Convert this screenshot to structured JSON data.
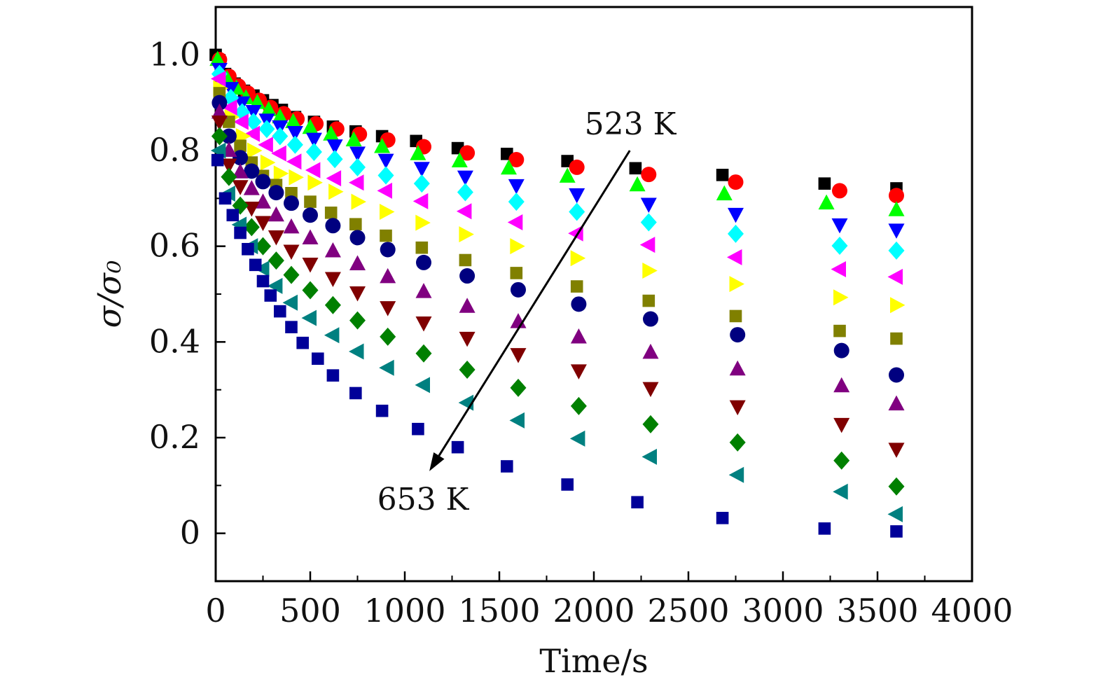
{
  "chart_data": {
    "type": "scatter",
    "title": "",
    "xlabel": "Time/s",
    "ylabel": "σ/σ₀",
    "xlim": [
      0,
      4000
    ],
    "ylim": [
      -0.1,
      1.1
    ],
    "x_ticks": [
      "0",
      "500",
      "1000",
      "1500",
      "2000",
      "2500",
      "3000",
      "3500",
      "4000"
    ],
    "y_ticks": [
      "0",
      "0.2",
      "0.4",
      "0.6",
      "0.8",
      "1.0"
    ],
    "grid": false,
    "legend": "none",
    "annotations": [
      {
        "text": "523 K"
      },
      {
        "text": "653 K"
      }
    ],
    "arrow": {
      "from": [
        2190,
        0.8
      ],
      "to": [
        1130,
        0.13
      ]
    },
    "series": [
      {
        "marker": "square",
        "color": "#000000",
        "points": [
          [
            0,
            1.0
          ],
          [
            50,
            0.96
          ],
          [
            100,
            0.94
          ],
          [
            150,
            0.925
          ],
          [
            200,
            0.915
          ],
          [
            250,
            0.905
          ],
          [
            300,
            0.895
          ],
          [
            350,
            0.885
          ],
          [
            420,
            0.87
          ],
          [
            520,
            0.86
          ],
          [
            620,
            0.85
          ],
          [
            740,
            0.84
          ],
          [
            880,
            0.83
          ],
          [
            1060,
            0.82
          ],
          [
            1280,
            0.805
          ],
          [
            1540,
            0.793
          ],
          [
            1860,
            0.778
          ],
          [
            2220,
            0.763
          ],
          [
            2680,
            0.749
          ],
          [
            3220,
            0.731
          ],
          [
            3600,
            0.721
          ]
        ]
      },
      {
        "marker": "circle",
        "color": "#ff0000",
        "points": [
          [
            20,
            0.99
          ],
          [
            70,
            0.955
          ],
          [
            120,
            0.935
          ],
          [
            170,
            0.92
          ],
          [
            230,
            0.905
          ],
          [
            290,
            0.89
          ],
          [
            360,
            0.877
          ],
          [
            430,
            0.866
          ],
          [
            530,
            0.856
          ],
          [
            640,
            0.845
          ],
          [
            760,
            0.834
          ],
          [
            910,
            0.822
          ],
          [
            1100,
            0.808
          ],
          [
            1330,
            0.795
          ],
          [
            1590,
            0.781
          ],
          [
            1910,
            0.765
          ],
          [
            2290,
            0.75
          ],
          [
            2750,
            0.734
          ],
          [
            3300,
            0.716
          ],
          [
            3600,
            0.706
          ]
        ]
      },
      {
        "marker": "triangle-up",
        "color": "#00ff00",
        "points": [
          [
            10,
            0.99
          ],
          [
            60,
            0.95
          ],
          [
            110,
            0.93
          ],
          [
            160,
            0.91
          ],
          [
            220,
            0.9
          ],
          [
            280,
            0.885
          ],
          [
            340,
            0.87
          ],
          [
            410,
            0.86
          ],
          [
            500,
            0.848
          ],
          [
            610,
            0.834
          ],
          [
            730,
            0.822
          ],
          [
            880,
            0.808
          ],
          [
            1070,
            0.793
          ],
          [
            1290,
            0.778
          ],
          [
            1550,
            0.763
          ],
          [
            1860,
            0.746
          ],
          [
            2230,
            0.728
          ],
          [
            2690,
            0.709
          ],
          [
            3230,
            0.69
          ],
          [
            3600,
            0.676
          ]
        ]
      },
      {
        "marker": "triangle-down",
        "color": "#0000ff",
        "points": [
          [
            20,
            0.97
          ],
          [
            80,
            0.93
          ],
          [
            140,
            0.9
          ],
          [
            200,
            0.882
          ],
          [
            270,
            0.864
          ],
          [
            340,
            0.85
          ],
          [
            420,
            0.838
          ],
          [
            520,
            0.824
          ],
          [
            630,
            0.81
          ],
          [
            750,
            0.795
          ],
          [
            900,
            0.78
          ],
          [
            1090,
            0.763
          ],
          [
            1320,
            0.745
          ],
          [
            1590,
            0.727
          ],
          [
            1910,
            0.708
          ],
          [
            2290,
            0.688
          ],
          [
            2750,
            0.667
          ],
          [
            3300,
            0.645
          ],
          [
            3600,
            0.634
          ]
        ]
      },
      {
        "marker": "diamond",
        "color": "#00ffff",
        "points": [
          [
            20,
            0.96
          ],
          [
            80,
            0.91
          ],
          [
            140,
            0.88
          ],
          [
            200,
            0.86
          ],
          [
            270,
            0.845
          ],
          [
            340,
            0.83
          ],
          [
            420,
            0.812
          ],
          [
            520,
            0.797
          ],
          [
            630,
            0.782
          ],
          [
            750,
            0.765
          ],
          [
            900,
            0.748
          ],
          [
            1090,
            0.731
          ],
          [
            1320,
            0.713
          ],
          [
            1590,
            0.693
          ],
          [
            1910,
            0.672
          ],
          [
            2290,
            0.65
          ],
          [
            2750,
            0.626
          ],
          [
            3300,
            0.601
          ],
          [
            3600,
            0.591
          ]
        ]
      },
      {
        "marker": "triangle-left",
        "color": "#ff00ff",
        "points": [
          [
            20,
            0.95
          ],
          [
            80,
            0.89
          ],
          [
            140,
            0.86
          ],
          [
            200,
            0.835
          ],
          [
            270,
            0.812
          ],
          [
            340,
            0.794
          ],
          [
            420,
            0.777
          ],
          [
            520,
            0.759
          ],
          [
            630,
            0.742
          ],
          [
            750,
            0.733
          ],
          [
            900,
            0.716
          ],
          [
            1090,
            0.694
          ],
          [
            1320,
            0.673
          ],
          [
            1590,
            0.65
          ],
          [
            1910,
            0.627
          ],
          [
            2290,
            0.603
          ],
          [
            2750,
            0.577
          ],
          [
            3300,
            0.552
          ],
          [
            3600,
            0.536
          ]
        ]
      },
      {
        "marker": "triangle-right",
        "color": "#ffff00",
        "points": [
          [
            20,
            0.93
          ],
          [
            80,
            0.87
          ],
          [
            140,
            0.83
          ],
          [
            200,
            0.8
          ],
          [
            270,
            0.775
          ],
          [
            340,
            0.752
          ],
          [
            420,
            0.744
          ],
          [
            520,
            0.733
          ],
          [
            630,
            0.714
          ],
          [
            750,
            0.693
          ],
          [
            900,
            0.672
          ],
          [
            1090,
            0.649
          ],
          [
            1320,
            0.625
          ],
          [
            1590,
            0.6
          ],
          [
            1910,
            0.575
          ],
          [
            2290,
            0.549
          ],
          [
            2750,
            0.521
          ],
          [
            3300,
            0.493
          ],
          [
            3600,
            0.477
          ]
        ]
      },
      {
        "marker": "square",
        "color": "#808000",
        "points": [
          [
            20,
            0.92
          ],
          [
            70,
            0.86
          ],
          [
            130,
            0.81
          ],
          [
            190,
            0.775
          ],
          [
            250,
            0.747
          ],
          [
            320,
            0.728
          ],
          [
            400,
            0.711
          ],
          [
            500,
            0.693
          ],
          [
            610,
            0.67
          ],
          [
            740,
            0.646
          ],
          [
            900,
            0.622
          ],
          [
            1090,
            0.597
          ],
          [
            1320,
            0.571
          ],
          [
            1590,
            0.544
          ],
          [
            1910,
            0.516
          ],
          [
            2290,
            0.486
          ],
          [
            2750,
            0.454
          ],
          [
            3300,
            0.423
          ],
          [
            3600,
            0.407
          ]
        ]
      },
      {
        "marker": "circle",
        "color": "#000080",
        "points": [
          [
            20,
            0.9
          ],
          [
            70,
            0.83
          ],
          [
            130,
            0.785
          ],
          [
            190,
            0.757
          ],
          [
            250,
            0.735
          ],
          [
            320,
            0.712
          ],
          [
            400,
            0.69
          ],
          [
            500,
            0.665
          ],
          [
            620,
            0.643
          ],
          [
            750,
            0.618
          ],
          [
            910,
            0.593
          ],
          [
            1100,
            0.566
          ],
          [
            1330,
            0.538
          ],
          [
            1600,
            0.509
          ],
          [
            1920,
            0.479
          ],
          [
            2300,
            0.448
          ],
          [
            2760,
            0.415
          ],
          [
            3310,
            0.382
          ],
          [
            3600,
            0.331
          ]
        ]
      },
      {
        "marker": "triangle-up",
        "color": "#800080",
        "points": [
          [
            20,
            0.88
          ],
          [
            70,
            0.8
          ],
          [
            130,
            0.755
          ],
          [
            190,
            0.72
          ],
          [
            250,
            0.692
          ],
          [
            320,
            0.665
          ],
          [
            400,
            0.64
          ],
          [
            500,
            0.617
          ],
          [
            620,
            0.59
          ],
          [
            750,
            0.563
          ],
          [
            910,
            0.536
          ],
          [
            1100,
            0.505
          ],
          [
            1330,
            0.474
          ],
          [
            1600,
            0.442
          ],
          [
            1920,
            0.41
          ],
          [
            2300,
            0.378
          ],
          [
            2760,
            0.343
          ],
          [
            3310,
            0.308
          ],
          [
            3600,
            0.27
          ]
        ]
      },
      {
        "marker": "triangle-down",
        "color": "#800000",
        "points": [
          [
            20,
            0.86
          ],
          [
            70,
            0.77
          ],
          [
            130,
            0.725
          ],
          [
            190,
            0.68
          ],
          [
            250,
            0.65
          ],
          [
            320,
            0.62
          ],
          [
            400,
            0.59
          ],
          [
            500,
            0.563
          ],
          [
            620,
            0.533
          ],
          [
            750,
            0.503
          ],
          [
            910,
            0.472
          ],
          [
            1100,
            0.44
          ],
          [
            1330,
            0.408
          ],
          [
            1600,
            0.374
          ],
          [
            1920,
            0.34
          ],
          [
            2300,
            0.303
          ],
          [
            2760,
            0.265
          ],
          [
            3310,
            0.228
          ],
          [
            3600,
            0.176
          ]
        ]
      },
      {
        "marker": "diamond",
        "color": "#008000",
        "points": [
          [
            20,
            0.83
          ],
          [
            70,
            0.745
          ],
          [
            130,
            0.685
          ],
          [
            190,
            0.64
          ],
          [
            250,
            0.6
          ],
          [
            320,
            0.57
          ],
          [
            400,
            0.54
          ],
          [
            500,
            0.508
          ],
          [
            620,
            0.477
          ],
          [
            750,
            0.445
          ],
          [
            910,
            0.411
          ],
          [
            1100,
            0.376
          ],
          [
            1330,
            0.342
          ],
          [
            1600,
            0.304
          ],
          [
            1920,
            0.266
          ],
          [
            2300,
            0.228
          ],
          [
            2760,
            0.19
          ],
          [
            3310,
            0.152
          ],
          [
            3600,
            0.098
          ]
        ]
      },
      {
        "marker": "triangle-left",
        "color": "#008080",
        "points": [
          [
            20,
            0.8
          ],
          [
            70,
            0.71
          ],
          [
            130,
            0.645
          ],
          [
            190,
            0.6
          ],
          [
            250,
            0.553
          ],
          [
            320,
            0.517
          ],
          [
            400,
            0.482
          ],
          [
            500,
            0.45
          ],
          [
            620,
            0.414
          ],
          [
            750,
            0.38
          ],
          [
            910,
            0.346
          ],
          [
            1100,
            0.31
          ],
          [
            1330,
            0.273
          ],
          [
            1600,
            0.236
          ],
          [
            1920,
            0.198
          ],
          [
            2300,
            0.16
          ],
          [
            2760,
            0.122
          ],
          [
            3310,
            0.087
          ],
          [
            3600,
            0.04
          ]
        ]
      },
      {
        "marker": "square",
        "color": "#000099",
        "points": [
          [
            10,
            0.78
          ],
          [
            50,
            0.7
          ],
          [
            90,
            0.665
          ],
          [
            130,
            0.628
          ],
          [
            170,
            0.594
          ],
          [
            210,
            0.561
          ],
          [
            250,
            0.527
          ],
          [
            290,
            0.497
          ],
          [
            340,
            0.464
          ],
          [
            400,
            0.431
          ],
          [
            460,
            0.398
          ],
          [
            540,
            0.365
          ],
          [
            620,
            0.33
          ],
          [
            740,
            0.293
          ],
          [
            880,
            0.256
          ],
          [
            1070,
            0.218
          ],
          [
            1280,
            0.18
          ],
          [
            1540,
            0.14
          ],
          [
            1860,
            0.102
          ],
          [
            2230,
            0.065
          ],
          [
            2680,
            0.032
          ],
          [
            3220,
            0.01
          ],
          [
            3600,
            0.004
          ]
        ]
      }
    ]
  }
}
